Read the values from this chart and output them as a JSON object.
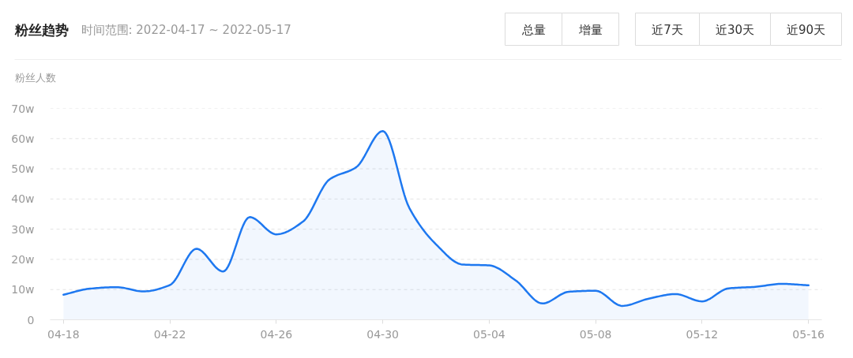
{
  "chart_data": {
    "type": "area",
    "title": "粉丝趋势",
    "subtitle": "时间范围: 2022-04-17 ~ 2022-05-17",
    "ylabel": "粉丝人数",
    "annotations": [
      "总量",
      "增量",
      "近7天",
      "近30天",
      "近90天"
    ],
    "x": [
      "2022-04-18",
      "2022-04-19",
      "2022-04-20",
      "2022-04-21",
      "2022-04-22",
      "2022-04-23",
      "2022-04-24",
      "2022-04-25",
      "2022-04-26",
      "2022-04-27",
      "2022-04-28",
      "2022-04-29",
      "2022-04-30",
      "2022-05-01",
      "2022-05-02",
      "2022-05-03",
      "2022-05-04",
      "2022-05-05",
      "2022-05-06",
      "2022-05-07",
      "2022-05-08",
      "2022-05-09",
      "2022-05-10",
      "2022-05-11",
      "2022-05-12",
      "2022-05-13",
      "2022-05-14",
      "2022-05-15",
      "2022-05-16"
    ],
    "series": [
      {
        "color": "#1e78f0",
        "values": [
          8.3,
          10.3,
          10.8,
          9.4,
          11.5,
          23.5,
          16,
          34,
          28.3,
          32.5,
          46.5,
          50.5,
          62.5,
          37,
          25,
          18.3,
          18,
          13,
          5.4,
          9.3,
          9.6,
          4.6,
          7,
          8.5,
          6.1,
          10.4,
          10.9,
          11.9,
          11.4
        ]
      }
    ],
    "xlim": [
      "2022-04-17T12:00",
      "2022-05-16T12:00"
    ],
    "xticks": [
      {
        "value": "2022-04-18",
        "label": "04-18"
      },
      {
        "value": "2022-04-22",
        "label": "04-22"
      },
      {
        "value": "2022-04-26",
        "label": "04-26"
      },
      {
        "value": "2022-04-30",
        "label": "04-30"
      },
      {
        "value": "2022-05-04",
        "label": "05-04"
      },
      {
        "value": "2022-05-08",
        "label": "05-08"
      },
      {
        "value": "2022-05-12",
        "label": "05-12"
      },
      {
        "value": "2022-05-16",
        "label": "05-16"
      }
    ],
    "ylim": [
      0,
      70
    ],
    "yticks": [
      0,
      {
        "value": 10,
        "label": "10w"
      },
      {
        "value": 20,
        "label": "20w"
      },
      {
        "value": 30,
        "label": "30w"
      },
      {
        "value": 40,
        "label": "40w"
      },
      {
        "value": 50,
        "label": "50w"
      },
      {
        "value": 60,
        "label": "60w"
      },
      {
        "value": 70,
        "label": "70w"
      }
    ],
    "grid": "y",
    "line_style": "solid"
  }
}
